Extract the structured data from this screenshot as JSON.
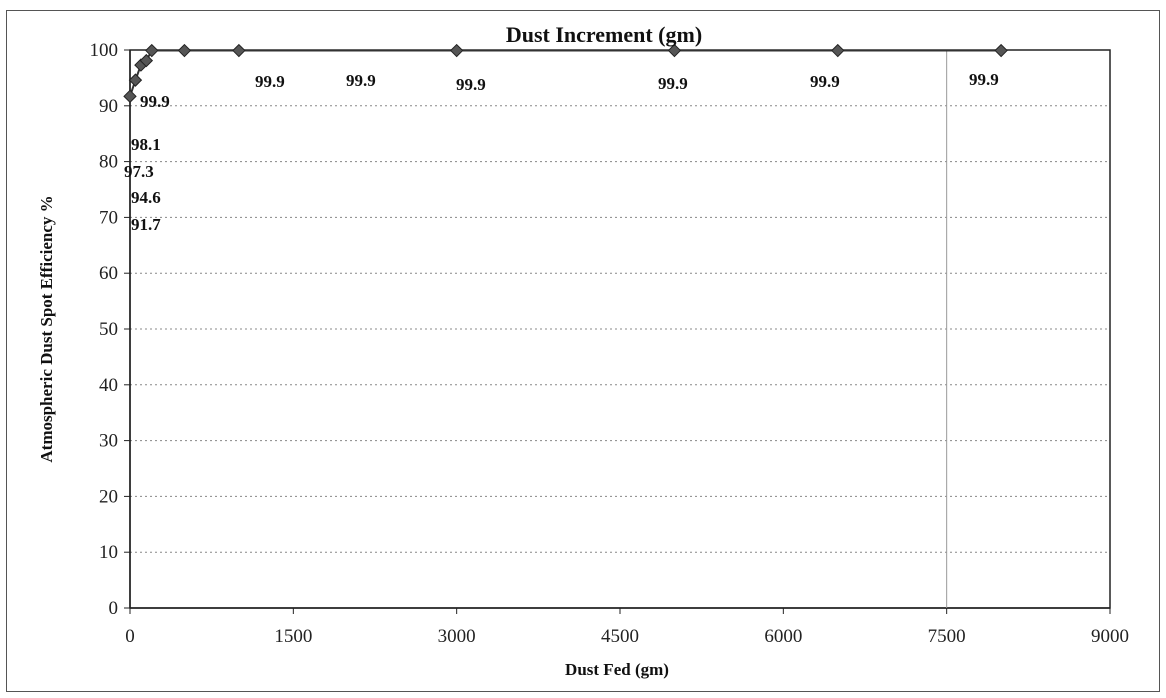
{
  "chart_data": {
    "type": "line",
    "title": "Dust Increment (gm)",
    "xlabel": "Dust Fed (gm)",
    "ylabel": "Atmospheric Dust Spot Efficiency %",
    "xlim": [
      0,
      9000
    ],
    "ylim": [
      0,
      100
    ],
    "x_ticks": [
      0,
      1500,
      3000,
      4500,
      6000,
      7500,
      9000
    ],
    "y_ticks": [
      0,
      10,
      20,
      30,
      40,
      50,
      60,
      70,
      80,
      90,
      100
    ],
    "grid": "horizontal dotted",
    "series": [
      {
        "color": "#555555",
        "marker": "diamond",
        "x": [
          0,
          50,
          100,
          150,
          200,
          500,
          1000,
          3000,
          5000,
          6500,
          8000
        ],
        "y": [
          91.7,
          94.6,
          97.3,
          98.1,
          99.9,
          99.9,
          99.9,
          99.9,
          99.9,
          99.9,
          99.9
        ]
      }
    ],
    "data_labels": [
      {
        "text": "91.7"
      },
      {
        "text": "94.6"
      },
      {
        "text": "97.3"
      },
      {
        "text": "98.1"
      },
      {
        "text": "99.9"
      },
      {
        "text": "99.9"
      },
      {
        "text": "99.9"
      },
      {
        "text": "99.9"
      },
      {
        "text": "99.9"
      },
      {
        "text": "99.9"
      },
      {
        "text": "99.9"
      }
    ]
  }
}
